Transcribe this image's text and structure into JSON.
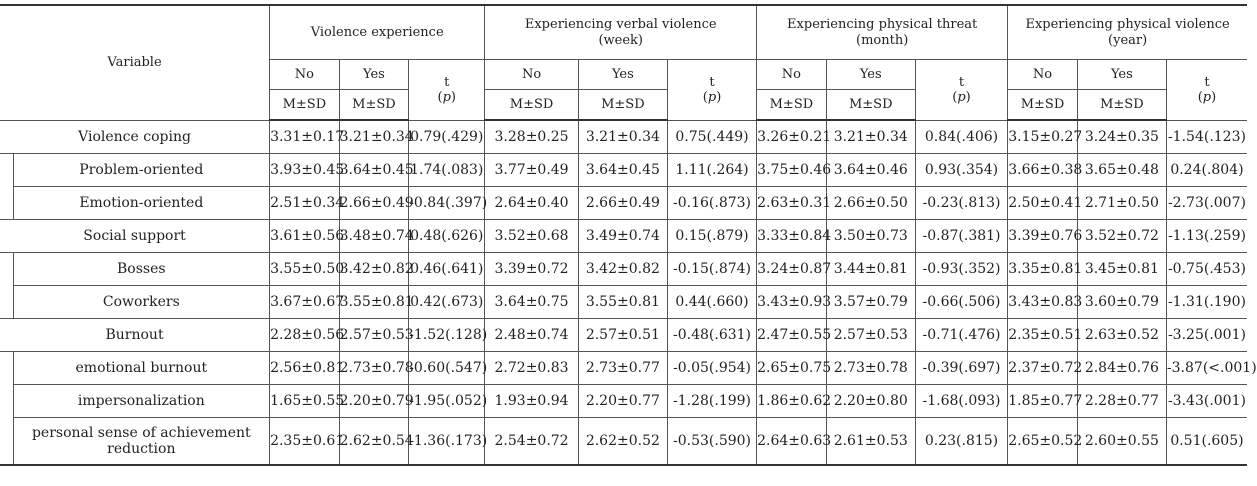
{
  "header": {
    "variable": "Variable",
    "groups": [
      {
        "line1": "Violence  experience",
        "line2": ""
      },
      {
        "line1": "Experiencing  verbal  violence",
        "line2": "(week)"
      },
      {
        "line1": "Experiencing  physical  threat",
        "line2": "(month)"
      },
      {
        "line1": "Experiencing  physical  violence",
        "line2": "(year)"
      }
    ],
    "no": "No",
    "yes": "Yes",
    "t": "t",
    "p_open": "(",
    "p": "p",
    "p_close": ")",
    "msd": "M±SD"
  },
  "rows": [
    {
      "label": "Violence  coping",
      "cells": [
        "3.31±0.17",
        "3.21±0.34",
        "0.79(.429)",
        "3.28±0.25",
        "3.21±0.34",
        "0.75(.449)",
        "3.26±0.21",
        "3.21±0.34",
        "0.84(.406)",
        "3.15±0.27",
        "3.24±0.35",
        "-1.54(.123)"
      ]
    },
    {
      "label": "Problem-oriented",
      "cells": [
        "3.93±0.45",
        "3.64±0.45",
        "1.74(.083)",
        "3.77±0.49",
        "3.64±0.45",
        "1.11(.264)",
        "3.75±0.46",
        "3.64±0.46",
        "0.93(.354)",
        "3.66±0.38",
        "3.65±0.48",
        "0.24(.804)"
      ]
    },
    {
      "label": "Emotion-oriented",
      "cells": [
        "2.51±0.34",
        "2.66±0.49",
        "-0.84(.397)",
        "2.64±0.40",
        "2.66±0.49",
        "-0.16(.873)",
        "2.63±0.31",
        "2.66±0.50",
        "-0.23(.813)",
        "2.50±0.41",
        "2.71±0.50",
        "-2.73(.007)"
      ]
    },
    {
      "label": "Social  support",
      "cells": [
        "3.61±0.56",
        "3.48±0.74",
        "0.48(.626)",
        "3.52±0.68",
        "3.49±0.74",
        "0.15(.879)",
        "3.33±0.84",
        "3.50±0.73",
        "-0.87(.381)",
        "3.39±0.76",
        "3.52±0.72",
        "-1.13(.259)"
      ]
    },
    {
      "label": "Bosses",
      "cells": [
        "3.55±0.50",
        "3.42±0.82",
        "0.46(.641)",
        "3.39±0.72",
        "3.42±0.82",
        "-0.15(.874)",
        "3.24±0.87",
        "3.44±0.81",
        "-0.93(.352)",
        "3.35±0.81",
        "3.45±0.81",
        "-0.75(.453)"
      ]
    },
    {
      "label": "Coworkers",
      "cells": [
        "3.67±0.67",
        "3.55±0.81",
        "0.42(.673)",
        "3.64±0.75",
        "3.55±0.81",
        "0.44(.660)",
        "3.43±0.93",
        "3.57±0.79",
        "-0.66(.506)",
        "3.43±0.83",
        "3.60±0.79",
        "-1.31(.190)"
      ]
    },
    {
      "label": "Burnout",
      "cells": [
        "2.28±0.56",
        "2.57±0.53",
        "-1.52(.128)",
        "2.48±0.74",
        "2.57±0.51",
        "-0.48(.631)",
        "2.47±0.55",
        "2.57±0.53",
        "-0.71(.476)",
        "2.35±0.51",
        "2.63±0.52",
        "-3.25(.001)"
      ]
    },
    {
      "label": "emotional  burnout",
      "cells": [
        "2.56±0.81",
        "2.73±0.78",
        "-0.60(.547)",
        "2.72±0.83",
        "2.73±0.77",
        "-0.05(.954)",
        "2.65±0.75",
        "2.73±0.78",
        "-0.39(.697)",
        "2.37±0.72",
        "2.84±0.76",
        "-3.87(<.001)"
      ]
    },
    {
      "label": "impersonalization",
      "cells": [
        "1.65±0.55",
        "2.20±0.79",
        "-1.95(.052)",
        "1.93±0.94",
        "2.20±0.77",
        "-1.28(.199)",
        "1.86±0.62",
        "2.20±0.80",
        "-1.68(.093)",
        "1.85±0.77",
        "2.28±0.77",
        "-3.43(.001)"
      ]
    },
    {
      "label": "personal  sense  of  achievement  reduction",
      "cells": [
        "2.35±0.61",
        "2.62±0.54",
        "-1.36(.173)",
        "2.54±0.72",
        "2.62±0.52",
        "-0.53(.590)",
        "2.64±0.63",
        "2.61±0.53",
        "0.23(.815)",
        "2.65±0.52",
        "2.60±0.55",
        "0.51(.605)"
      ]
    }
  ]
}
